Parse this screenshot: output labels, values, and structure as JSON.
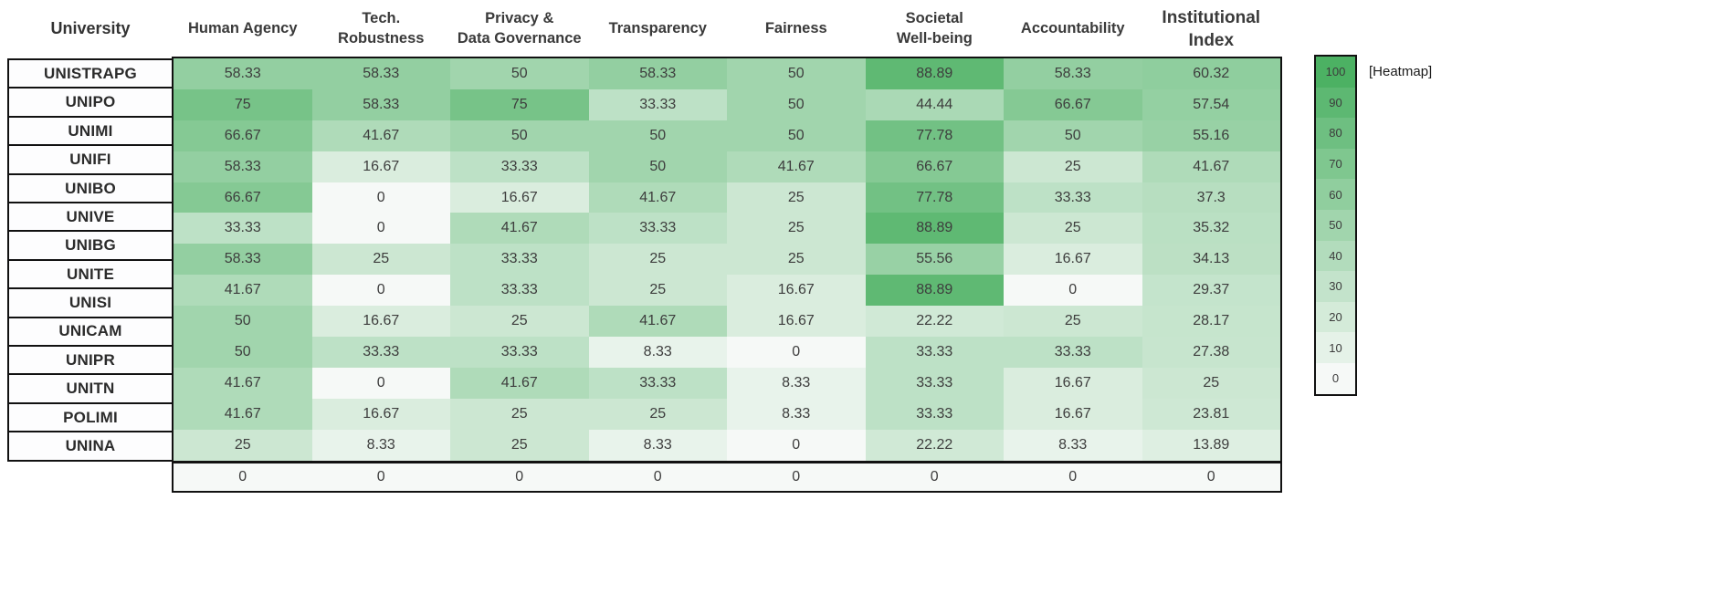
{
  "chart_data": {
    "type": "heatmap",
    "row_header": "University",
    "columns": [
      {
        "label": "Human Agency",
        "lines": [
          "Human Agency"
        ]
      },
      {
        "label": "Tech. Robustness",
        "lines": [
          "Tech.",
          "Robustness"
        ]
      },
      {
        "label": "Privacy & Data Governance",
        "lines": [
          "Privacy &",
          "Data Governance"
        ]
      },
      {
        "label": "Transparency",
        "lines": [
          "Transparency"
        ]
      },
      {
        "label": "Fairness",
        "lines": [
          "Fairness"
        ]
      },
      {
        "label": "Societal Well-being",
        "lines": [
          "Societal",
          "Well-being"
        ]
      },
      {
        "label": "Accountability",
        "lines": [
          "Accountability"
        ]
      },
      {
        "label": "Institutional Index",
        "lines": [
          "Institutional",
          "Index"
        ]
      }
    ],
    "rows": [
      {
        "university": "UNISTRAPG",
        "values": [
          "58.33",
          "58.33",
          "50",
          "58.33",
          "50",
          "88.89",
          "58.33",
          "60.32"
        ]
      },
      {
        "university": "UNIPO",
        "values": [
          "75",
          "58.33",
          "75",
          "33.33",
          "50",
          "44.44",
          "66.67",
          "57.54"
        ]
      },
      {
        "university": "UNIMI",
        "values": [
          "66.67",
          "41.67",
          "50",
          "50",
          "50",
          "77.78",
          "50",
          "55.16"
        ]
      },
      {
        "university": "UNIFI",
        "values": [
          "58.33",
          "16.67",
          "33.33",
          "50",
          "41.67",
          "66.67",
          "25",
          "41.67"
        ]
      },
      {
        "university": "UNIBO",
        "values": [
          "66.67",
          "0",
          "16.67",
          "41.67",
          "25",
          "77.78",
          "33.33",
          "37.3"
        ]
      },
      {
        "university": "UNIVE",
        "values": [
          "33.33",
          "0",
          "41.67",
          "33.33",
          "25",
          "88.89",
          "25",
          "35.32"
        ]
      },
      {
        "university": "UNIBG",
        "values": [
          "58.33",
          "25",
          "33.33",
          "25",
          "25",
          "55.56",
          "16.67",
          "34.13"
        ]
      },
      {
        "university": "UNITE",
        "values": [
          "41.67",
          "0",
          "33.33",
          "25",
          "16.67",
          "88.89",
          "0",
          "29.37"
        ]
      },
      {
        "university": "UNISI",
        "values": [
          "50",
          "16.67",
          "25",
          "41.67",
          "16.67",
          "22.22",
          "25",
          "28.17"
        ]
      },
      {
        "university": "UNICAM",
        "values": [
          "50",
          "33.33",
          "33.33",
          "8.33",
          "0",
          "33.33",
          "33.33",
          "27.38"
        ]
      },
      {
        "university": "UNIPR",
        "values": [
          "41.67",
          "0",
          "41.67",
          "33.33",
          "8.33",
          "33.33",
          "16.67",
          "25"
        ]
      },
      {
        "university": "UNITN",
        "values": [
          "41.67",
          "16.67",
          "25",
          "25",
          "8.33",
          "33.33",
          "16.67",
          "23.81"
        ]
      },
      {
        "university": "POLIMI",
        "values": [
          "25",
          "8.33",
          "25",
          "8.33",
          "0",
          "22.22",
          "8.33",
          "13.89"
        ]
      },
      {
        "university": "UNINA",
        "values": [
          "0",
          "0",
          "0",
          "0",
          "0",
          "0",
          "0",
          "0"
        ]
      }
    ],
    "separator_before_row": "UNINA",
    "colormap": {
      "zero_color": "#f6f9f7",
      "full_color": "#4cb163",
      "domain": [
        0,
        100
      ]
    },
    "legend": {
      "label": "[Heatmap]",
      "ticks": [
        "100",
        "90",
        "80",
        "70",
        "60",
        "50",
        "40",
        "30",
        "20",
        "10",
        "0"
      ]
    },
    "ylim": [
      0,
      100
    ],
    "grid": false,
    "legend_position": "right"
  }
}
